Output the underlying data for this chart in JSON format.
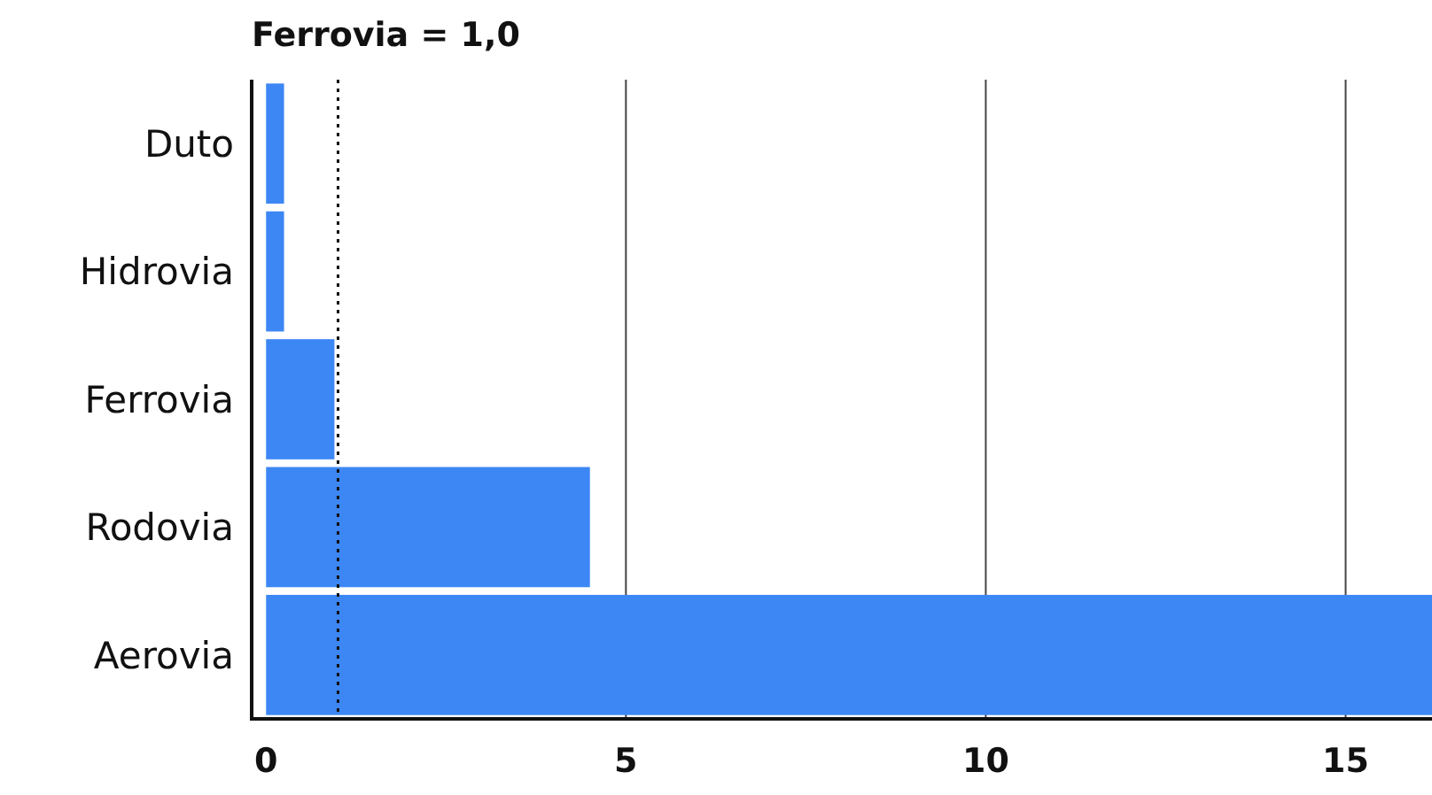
{
  "chart_data": {
    "type": "bar",
    "orientation": "horizontal",
    "title": "Ferrovia = 1,0",
    "categories": [
      "Duto",
      "Hidrovia",
      "Ferrovia",
      "Rodovia",
      "Aerovia"
    ],
    "values": [
      0.25,
      0.25,
      0.95,
      4.5,
      16.2
    ],
    "color": "#3d87f5",
    "xlim": [
      -0.2,
      16.2
    ],
    "xticks": [
      0,
      5,
      10,
      15
    ],
    "grid": "x",
    "ref_lines": [
      {
        "axis": "x",
        "value": 1,
        "line_style": "dotted",
        "color": "#111111"
      }
    ]
  }
}
